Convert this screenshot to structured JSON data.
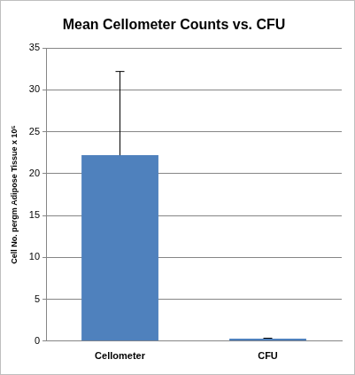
{
  "chart_data": {
    "type": "bar",
    "title": "Mean Cellometer Counts vs. CFU",
    "y_label": "Cell No. pergm Adipose Tissue x 10⁵",
    "categories": [
      "Cellometer",
      "CFU"
    ],
    "values": [
      22.2,
      0.3
    ],
    "errors": [
      10.0,
      0.05
    ],
    "color": "#4f81bd",
    "ylim": [
      0,
      35
    ],
    "yticks": [
      0,
      5,
      10,
      15,
      20,
      25,
      30,
      35
    ],
    "grid": true
  }
}
